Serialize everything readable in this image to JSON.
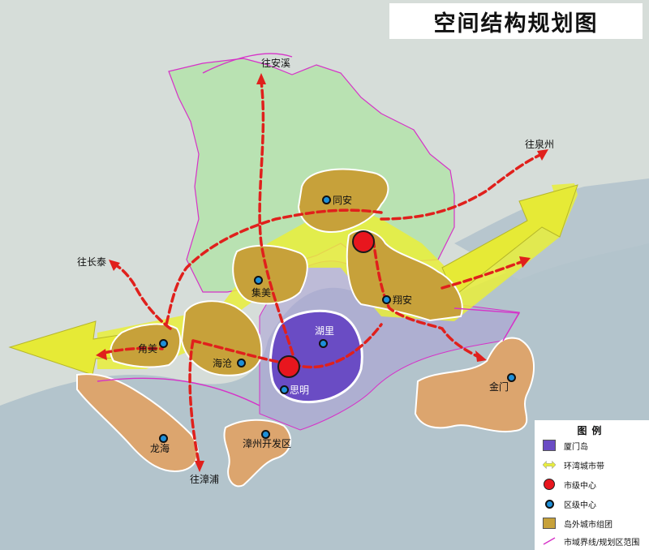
{
  "title": "空间结构规划图",
  "colors": {
    "xiamen_island": "#6a4cc4",
    "bay_belt": "#e9ee3a",
    "city_center": "#e8161e",
    "district_center": "#1e8fd8",
    "outer_cluster": "#c7a13a",
    "boundary": "#d632c8",
    "route": "#e0201c",
    "outer_area": "#dca56e",
    "hinterland": "#b8e0b0"
  },
  "places": {
    "tongan": "同安",
    "jimei": "集美",
    "xiangan": "翔安",
    "huli": "湖里",
    "siming": "思明",
    "haicang": "海沧",
    "jiaomei": "角美",
    "jinmen": "金门",
    "longhai": "龙海",
    "zhangzhou_dev": "漳州开发区"
  },
  "routes": {
    "to_anxi": "往安溪",
    "to_quanzhou": "往泉州",
    "to_changtai": "往长泰",
    "to_zhangpu": "往漳浦"
  },
  "legend": {
    "title": "图例",
    "items": [
      {
        "icon": "xiamen-island-swatch",
        "label": "厦门岛"
      },
      {
        "icon": "bay-belt-arrow",
        "label": "环湾城市带"
      },
      {
        "icon": "city-center-dot",
        "label": "市级中心"
      },
      {
        "icon": "district-center-dot",
        "label": "区级中心"
      },
      {
        "icon": "outer-cluster-swatch",
        "label": "岛外城市组团"
      },
      {
        "icon": "boundary-line",
        "label": "市域界线/规划区范围"
      }
    ]
  }
}
